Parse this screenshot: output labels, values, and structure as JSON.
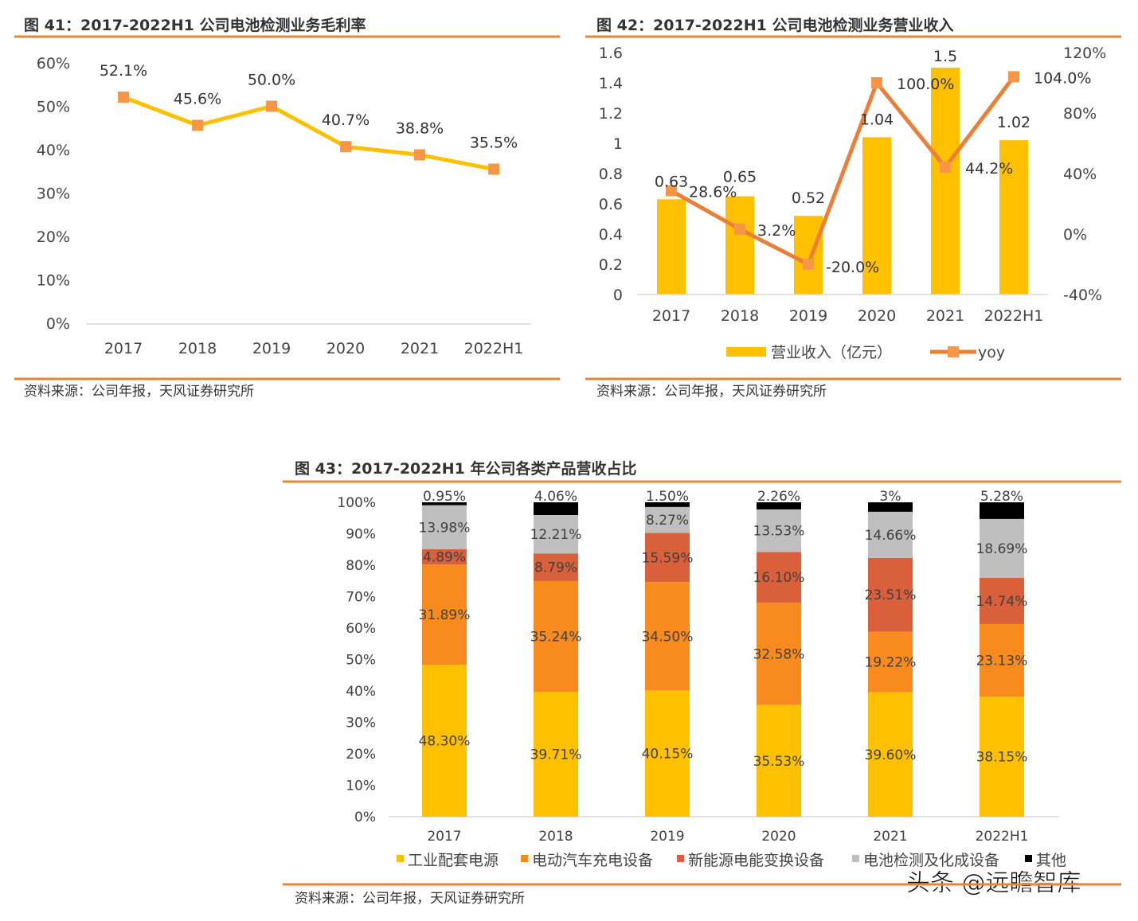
{
  "colors": {
    "accent": "#E8852E",
    "yellow": "#FFC000",
    "orange": "#F98B1E",
    "red": "#D9603B",
    "gray": "#BFBFBF",
    "black": "#000000",
    "marker": "#F79646",
    "yoy": "#E8803A"
  },
  "watermark": "头条 @远瞻智库",
  "chart_data": [
    {
      "type": "line",
      "title": "图 41：2017-2022H1 公司电池检测业务毛利率",
      "source": "资料来源：公司年报，天风证券研究所",
      "categories": [
        "2017",
        "2018",
        "2019",
        "2020",
        "2021",
        "2022H1"
      ],
      "values": [
        52.1,
        45.6,
        50.0,
        40.7,
        38.8,
        35.5
      ],
      "labels": [
        "52.1%",
        "45.6%",
        "50.0%",
        "40.7%",
        "38.8%",
        "35.5%"
      ],
      "ylim": [
        0,
        60
      ],
      "yticks": [
        "0%",
        "10%",
        "20%",
        "30%",
        "40%",
        "50%",
        "60%"
      ],
      "grid": false
    },
    {
      "type": "bar+line",
      "title": "图 42：2017-2022H1 公司电池检测业务营业收入",
      "source": "资料来源：公司年报，天风证券研究所",
      "categories": [
        "2017",
        "2018",
        "2019",
        "2020",
        "2021",
        "2022H1"
      ],
      "series": [
        {
          "name": "营业收入（亿元）",
          "type": "bar",
          "axis": "left",
          "values": [
            0.63,
            0.65,
            0.52,
            1.04,
            1.5,
            1.02
          ],
          "labels": [
            "0.63",
            "0.65",
            "0.52",
            "1.04",
            "1.5",
            "1.02"
          ]
        },
        {
          "name": "yoy",
          "type": "line",
          "axis": "right",
          "values": [
            28.6,
            3.2,
            -20.0,
            100.0,
            44.2,
            104.0
          ],
          "labels": [
            "28.6%",
            "3.2%",
            "-20.0%",
            "100.0%",
            "44.2%",
            "104.0%"
          ]
        }
      ],
      "ylim": [
        0,
        1.6
      ],
      "yticks": [
        "0",
        "0.2",
        "0.4",
        "0.6",
        "0.8",
        "1",
        "1.2",
        "1.4",
        "1.6"
      ],
      "y2lim": [
        -40,
        120
      ],
      "y2ticks": [
        "-40%",
        "0%",
        "40%",
        "80%",
        "120%"
      ],
      "legend": "bottom",
      "grid": false
    },
    {
      "type": "stacked-bar",
      "title": "图 43：2017-2022H1 年公司各类产品营收占比",
      "source": "资料来源：公司年报，天风证券研究所",
      "categories": [
        "2017",
        "2018",
        "2019",
        "2020",
        "2021",
        "2022H1"
      ],
      "series": [
        {
          "name": "工业配套电源",
          "color": "#FFC000",
          "values": [
            48.3,
            39.71,
            40.15,
            35.53,
            39.6,
            38.15
          ],
          "labels": [
            "48.30%",
            "39.71%",
            "40.15%",
            "35.53%",
            "39.60%",
            "38.15%"
          ]
        },
        {
          "name": "电动汽车充电设备",
          "color": "#F98B1E",
          "values": [
            31.89,
            35.24,
            34.5,
            32.58,
            19.22,
            23.13
          ],
          "labels": [
            "31.89%",
            "35.24%",
            "34.50%",
            "32.58%",
            "19.22%",
            "23.13%"
          ]
        },
        {
          "name": "新能源电能变换设备",
          "color": "#D9603B",
          "values": [
            4.89,
            8.79,
            15.59,
            16.1,
            23.51,
            14.74
          ],
          "labels": [
            "4.89%",
            "8.79%",
            "15.59%",
            "16.10%",
            "23.51%",
            "14.74%"
          ]
        },
        {
          "name": "电池检测及化成设备",
          "color": "#BFBFBF",
          "values": [
            13.98,
            12.21,
            8.27,
            13.53,
            14.66,
            18.69
          ],
          "labels": [
            "13.98%",
            "12.21%",
            "8.27%",
            "13.53%",
            "14.66%",
            "18.69%"
          ]
        },
        {
          "name": "其他",
          "color": "#000000",
          "values": [
            0.95,
            4.06,
            1.5,
            2.26,
            3,
            5.28
          ],
          "labels": [
            "0.95%",
            "4.06%",
            "1.50%",
            "2.26%",
            "3%",
            "5.28%"
          ]
        }
      ],
      "ylim": [
        0,
        100
      ],
      "yticks": [
        "0%",
        "10%",
        "20%",
        "30%",
        "40%",
        "50%",
        "60%",
        "70%",
        "80%",
        "90%",
        "100%"
      ],
      "legend": "bottom",
      "grid": false
    }
  ]
}
